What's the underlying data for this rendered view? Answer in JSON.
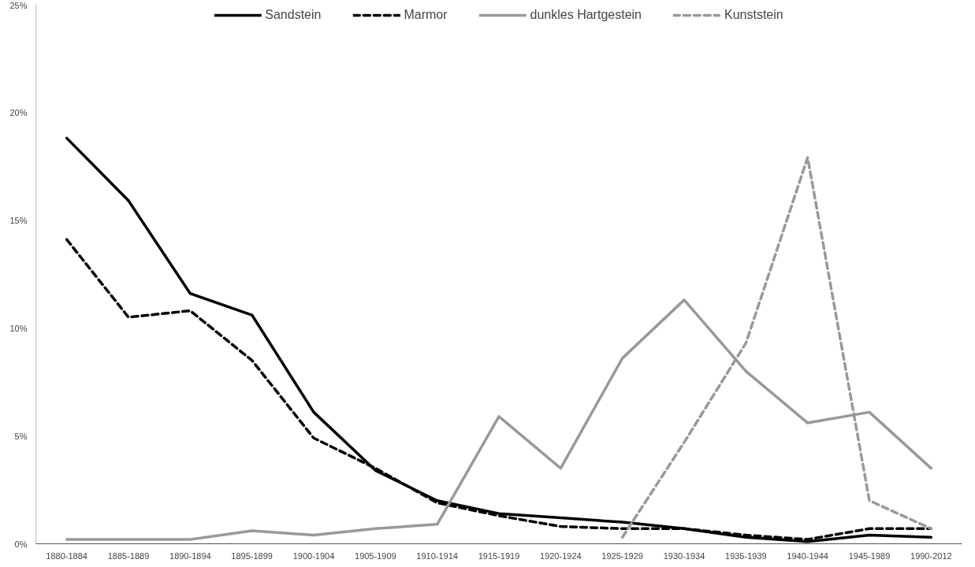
{
  "chart_data": {
    "type": "line",
    "categories": [
      "1880-1884",
      "1885-1889",
      "1890-1894",
      "1895-1899",
      "1900-1904",
      "1905-1909",
      "1910-1914",
      "1915-1919",
      "1920-1924",
      "1925-1929",
      "1930-1934",
      "1935-1939",
      "1940-1944",
      "1945-1989",
      "1990-2012"
    ],
    "series": [
      {
        "name": "Sandstein",
        "color": "#000000",
        "line_style": "solid",
        "values": [
          18.8,
          15.9,
          11.6,
          10.6,
          6.1,
          3.4,
          2.0,
          1.4,
          1.2,
          1.0,
          0.7,
          0.3,
          0.1,
          0.4,
          0.3
        ]
      },
      {
        "name": "Marmor",
        "color": "#000000",
        "line_style": "dashed",
        "values": [
          14.1,
          10.5,
          10.8,
          8.5,
          4.9,
          3.5,
          1.9,
          1.3,
          0.8,
          0.7,
          0.7,
          0.4,
          0.2,
          0.7,
          0.7
        ]
      },
      {
        "name": "dunkles Hartgestein",
        "color": "#999999",
        "line_style": "solid",
        "values": [
          0.2,
          0.2,
          0.2,
          0.6,
          0.4,
          0.7,
          0.9,
          5.9,
          3.5,
          8.6,
          11.3,
          8.0,
          5.6,
          6.1,
          3.5
        ]
      },
      {
        "name": "Kunststein",
        "color": "#999999",
        "line_style": "dashed",
        "values": [
          null,
          null,
          null,
          null,
          null,
          null,
          null,
          null,
          null,
          0.3,
          4.7,
          9.3,
          17.9,
          2.0,
          0.7
        ]
      }
    ],
    "ylim": [
      0,
      25
    ],
    "yticks": [
      {
        "value": 0,
        "label": "0%"
      },
      {
        "value": 5,
        "label": "5%"
      },
      {
        "value": 10,
        "label": "10%"
      },
      {
        "value": 15,
        "label": "15%"
      },
      {
        "value": 20,
        "label": "20%"
      },
      {
        "value": 25,
        "label": "25%"
      }
    ],
    "grid": false,
    "legend": "top"
  }
}
